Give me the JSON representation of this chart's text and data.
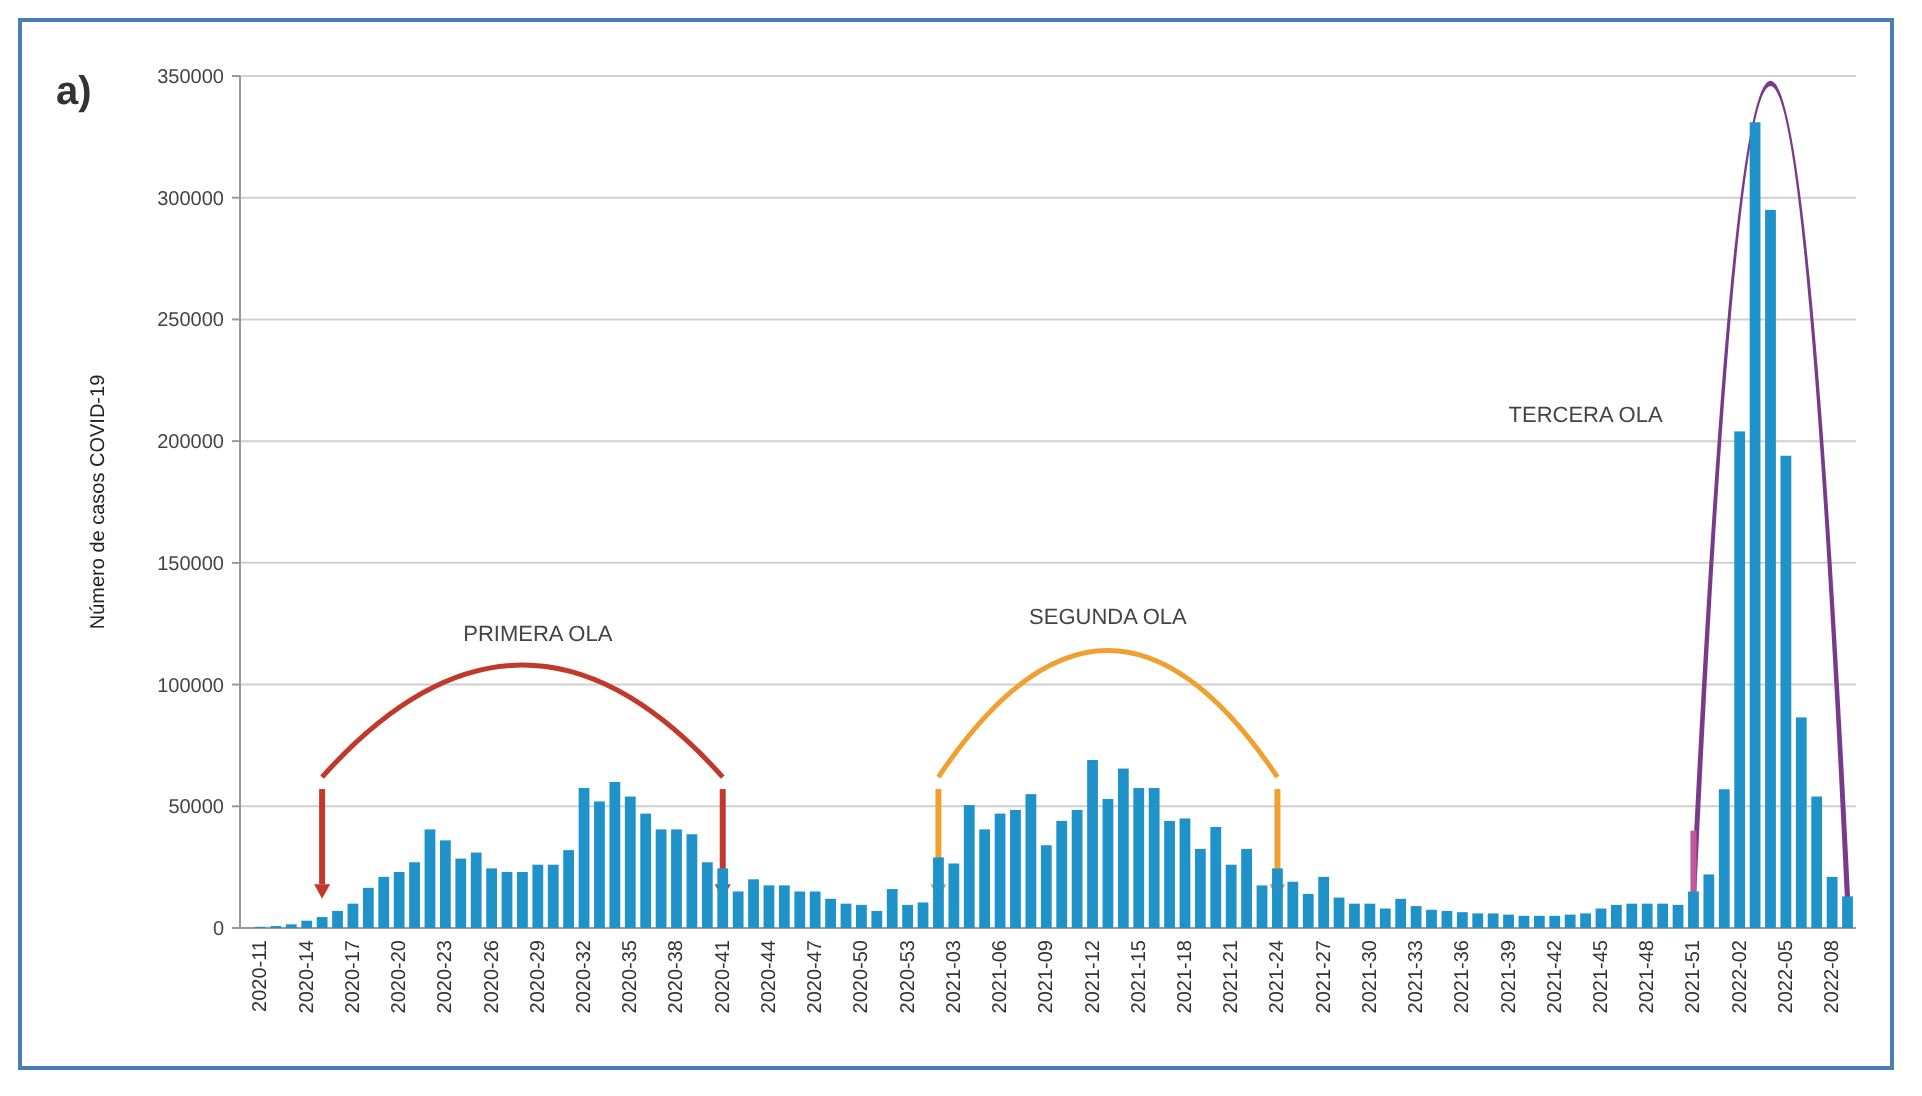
{
  "chart_data": {
    "type": "bar",
    "title": "a)",
    "ylabel": "Número de casos COVID-19",
    "categories": [
      "2020-11",
      null,
      null,
      "2020-14",
      null,
      null,
      "2020-17",
      null,
      null,
      "2020-20",
      null,
      null,
      "2020-23",
      null,
      null,
      "2020-26",
      null,
      null,
      "2020-29",
      null,
      null,
      "2020-32",
      null,
      null,
      "2020-35",
      null,
      null,
      "2020-38",
      null,
      null,
      "2020-41",
      null,
      null,
      "2020-44",
      null,
      null,
      "2020-47",
      null,
      null,
      "2020-50",
      null,
      null,
      "2020-53",
      null,
      null,
      "2021-03",
      null,
      null,
      "2021-06",
      null,
      null,
      "2021-09",
      null,
      null,
      "2021-12",
      null,
      null,
      "2021-15",
      null,
      null,
      "2021-18",
      null,
      null,
      "2021-21",
      null,
      null,
      "2021-24",
      null,
      null,
      "2021-27",
      null,
      null,
      "2021-30",
      null,
      null,
      "2021-33",
      null,
      null,
      "2021-36",
      null,
      null,
      "2021-39",
      null,
      null,
      "2021-42",
      null,
      null,
      "2021-45",
      null,
      null,
      "2021-48",
      null,
      null,
      "2021-51",
      null,
      null,
      "2022-02",
      null,
      null,
      "2022-05",
      null,
      null,
      "2022-08",
      null
    ],
    "values": [
      500,
      800,
      1500,
      3000,
      4500,
      7000,
      10000,
      16500,
      21000,
      23000,
      27000,
      40500,
      36000,
      28500,
      31000,
      24500,
      23000,
      23000,
      26000,
      26000,
      32000,
      57500,
      52000,
      60000,
      54000,
      47000,
      40500,
      40500,
      38500,
      27000,
      24500,
      15000,
      20000,
      17500,
      17500,
      15000,
      15000,
      12000,
      10000,
      9500,
      7000,
      16000,
      9500,
      10500,
      29000,
      26500,
      50500,
      40500,
      47000,
      48500,
      55000,
      34000,
      44000,
      48500,
      69000,
      53000,
      65500,
      57500,
      57500,
      44000,
      45000,
      32500,
      41500,
      26000,
      32500,
      17500,
      24500,
      19000,
      14000,
      21000,
      12500,
      10000,
      10000,
      8000,
      12000,
      9000,
      7500,
      7000,
      6500,
      6000,
      6000,
      5500,
      5000,
      5000,
      5000,
      5500,
      6000,
      8000,
      9500,
      10000,
      10000,
      10000,
      9500,
      15000,
      22000,
      57000,
      204000,
      331000,
      295000,
      194000,
      86500,
      54000,
      21000,
      13000
    ],
    "color": "#1f93c9",
    "ylim": [
      0,
      350000
    ],
    "yticks": [
      0,
      50000,
      100000,
      150000,
      200000,
      250000,
      300000,
      350000
    ],
    "grid": "y",
    "annotations": [
      "PRIMERA OLA",
      "SEGUNDA OLA",
      "TERCERA OLA"
    ]
  }
}
